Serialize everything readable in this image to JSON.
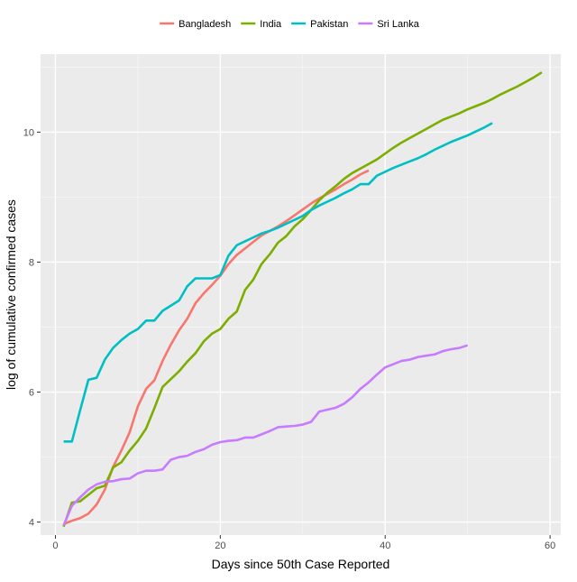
{
  "chart_data": {
    "type": "line",
    "xlabel": "Days since 50th Case Reported",
    "ylabel": "log of cumulative confirmed cases",
    "xlim": [
      -1.8,
      61.3
    ],
    "ylim": [
      3.8,
      11.2
    ],
    "x_ticks": [
      0,
      20,
      40,
      60
    ],
    "y_ticks": [
      4,
      6,
      8,
      10
    ],
    "grid": true,
    "legend_position": "top",
    "background": "#ebebeb",
    "series": [
      {
        "name": "Bangladesh",
        "color": "#f8766d",
        "x": [
          1,
          2,
          3,
          4,
          5,
          6,
          7,
          8,
          9,
          10,
          11,
          12,
          13,
          14,
          15,
          16,
          17,
          18,
          19,
          20,
          21,
          22,
          23,
          24,
          25,
          26,
          27,
          28,
          29,
          30,
          31,
          32,
          33,
          34,
          35,
          36,
          37,
          38
        ],
        "y": [
          3.97,
          4.02,
          4.06,
          4.13,
          4.27,
          4.5,
          4.85,
          5.1,
          5.38,
          5.78,
          6.05,
          6.18,
          6.48,
          6.73,
          6.95,
          7.13,
          7.37,
          7.52,
          7.65,
          7.79,
          7.97,
          8.11,
          8.21,
          8.31,
          8.41,
          8.48,
          8.55,
          8.63,
          8.72,
          8.81,
          8.9,
          8.98,
          9.05,
          9.12,
          9.2,
          9.27,
          9.35,
          9.41
        ]
      },
      {
        "name": "India",
        "color": "#7cae00",
        "x": [
          1,
          2,
          3,
          4,
          5,
          6,
          7,
          8,
          9,
          10,
          11,
          12,
          13,
          14,
          15,
          16,
          17,
          18,
          19,
          20,
          21,
          22,
          23,
          24,
          25,
          26,
          27,
          28,
          29,
          30,
          31,
          32,
          33,
          34,
          35,
          36,
          37,
          38,
          39,
          40,
          41,
          42,
          43,
          44,
          45,
          46,
          47,
          48,
          49,
          50,
          51,
          52,
          53,
          54,
          55,
          56,
          57,
          58,
          59
        ],
        "y": [
          3.93,
          4.3,
          4.32,
          4.42,
          4.52,
          4.56,
          4.84,
          4.92,
          5.1,
          5.25,
          5.44,
          5.75,
          6.08,
          6.2,
          6.32,
          6.47,
          6.6,
          6.78,
          6.9,
          6.97,
          7.13,
          7.24,
          7.57,
          7.73,
          7.97,
          8.12,
          8.3,
          8.4,
          8.55,
          8.66,
          8.8,
          8.95,
          9.07,
          9.17,
          9.28,
          9.37,
          9.44,
          9.51,
          9.58,
          9.67,
          9.76,
          9.84,
          9.91,
          9.98,
          10.05,
          10.12,
          10.19,
          10.24,
          10.29,
          10.35,
          10.4,
          10.45,
          10.51,
          10.58,
          10.64,
          10.7,
          10.77,
          10.84,
          10.92
        ]
      },
      {
        "name": "Pakistan",
        "color": "#00bfc4",
        "x": [
          1,
          2,
          3,
          4,
          5,
          6,
          7,
          8,
          9,
          10,
          11,
          12,
          13,
          14,
          15,
          16,
          17,
          18,
          19,
          20,
          21,
          22,
          23,
          24,
          25,
          26,
          27,
          28,
          29,
          30,
          31,
          32,
          33,
          34,
          35,
          36,
          37,
          38,
          39,
          40,
          41,
          42,
          43,
          44,
          45,
          46,
          47,
          48,
          49,
          50,
          51,
          52,
          53
        ],
        "y": [
          5.24,
          5.24,
          5.72,
          6.19,
          6.22,
          6.5,
          6.68,
          6.8,
          6.9,
          6.97,
          7.1,
          7.1,
          7.25,
          7.33,
          7.41,
          7.63,
          7.75,
          7.75,
          7.75,
          7.8,
          8.1,
          8.26,
          8.32,
          8.38,
          8.44,
          8.48,
          8.53,
          8.59,
          8.65,
          8.71,
          8.8,
          8.87,
          8.93,
          8.99,
          9.06,
          9.12,
          9.2,
          9.2,
          9.33,
          9.39,
          9.45,
          9.5,
          9.55,
          9.6,
          9.66,
          9.73,
          9.79,
          9.85,
          9.9,
          9.95,
          10.01,
          10.07,
          10.14
        ]
      },
      {
        "name": "Sri Lanka",
        "color": "#c77cff",
        "x": [
          1,
          2,
          3,
          4,
          5,
          6,
          7,
          8,
          9,
          10,
          11,
          12,
          13,
          14,
          15,
          16,
          17,
          18,
          19,
          20,
          21,
          22,
          23,
          24,
          25,
          26,
          27,
          28,
          29,
          30,
          31,
          32,
          33,
          34,
          35,
          36,
          37,
          38,
          39,
          40,
          41,
          42,
          43,
          44,
          45,
          46,
          47,
          48,
          49,
          50
        ],
        "y": [
          3.95,
          4.25,
          4.38,
          4.5,
          4.58,
          4.62,
          4.63,
          4.66,
          4.67,
          4.75,
          4.79,
          4.79,
          4.81,
          4.96,
          5.0,
          5.02,
          5.08,
          5.12,
          5.19,
          5.23,
          5.25,
          5.26,
          5.3,
          5.3,
          5.35,
          5.4,
          5.46,
          5.47,
          5.48,
          5.5,
          5.54,
          5.7,
          5.73,
          5.76,
          5.82,
          5.92,
          6.05,
          6.15,
          6.27,
          6.38,
          6.43,
          6.48,
          6.5,
          6.54,
          6.56,
          6.58,
          6.63,
          6.66,
          6.68,
          6.72
        ]
      }
    ]
  }
}
